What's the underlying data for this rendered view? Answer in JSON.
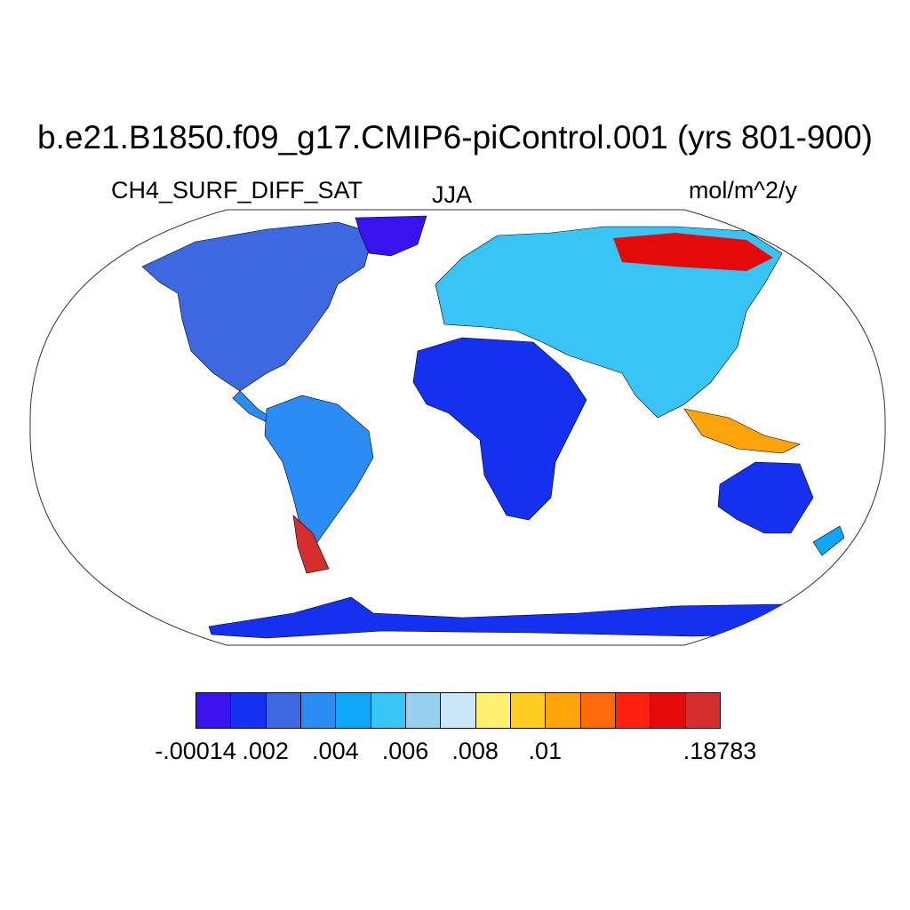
{
  "title": "b.e21.B1850.f09_g17.CMIP6-piControl.001 (yrs 801-900)",
  "variable": "CH4_SURF_DIFF_SAT",
  "season": "JJA",
  "units": "mol/m^2/y",
  "projection": "Robinson",
  "colorbar": {
    "colors": [
      "#3a12f0",
      "#1630f0",
      "#3c68e0",
      "#2a8cf4",
      "#10a6f8",
      "#38c4f4",
      "#96d0ee",
      "#cae6f8",
      "#fff070",
      "#ffce20",
      "#ffa40a",
      "#ff6a0a",
      "#ff200e",
      "#e40a0a",
      "#d42e2e"
    ],
    "labels": [
      {
        "text": "-.00014",
        "index": 0
      },
      {
        "text": ".002",
        "index": 2
      },
      {
        "text": ".004",
        "index": 4
      },
      {
        "text": ".006",
        "index": 6
      },
      {
        "text": ".008",
        "index": 8
      },
      {
        "text": ".01",
        "index": 10
      },
      {
        "text": ".18783",
        "index": 15
      }
    ]
  },
  "regions": [
    {
      "name": "north-america",
      "level": 2
    },
    {
      "name": "greenland",
      "level": 0
    },
    {
      "name": "south-america",
      "level": 3
    },
    {
      "name": "patagonia",
      "level": 14
    },
    {
      "name": "africa",
      "level": 1
    },
    {
      "name": "europe-asia",
      "level": 5
    },
    {
      "name": "siberia",
      "level": 13
    },
    {
      "name": "australia",
      "level": 1
    },
    {
      "name": "antarctica",
      "level": 1
    }
  ]
}
